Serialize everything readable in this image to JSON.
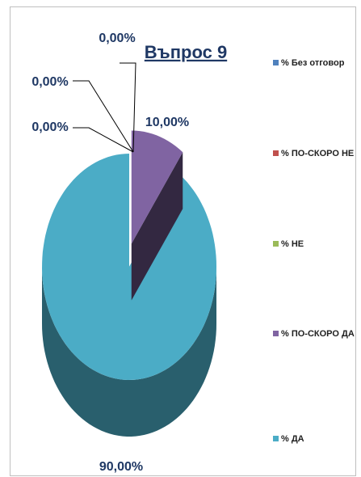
{
  "chart_data": {
    "type": "pie3d",
    "title": "Въпрос 9",
    "categories": [
      "% Без отговор",
      "% ПО-СКОРО НЕ",
      "% НЕ",
      "% ПО-СКОРО ДА",
      "% ДА"
    ],
    "values": [
      0,
      0,
      0,
      10,
      90
    ],
    "value_labels": [
      "0,00%",
      "0,00%",
      "0,00%",
      "10,00%",
      "90,00%"
    ],
    "colors": [
      "#4f81bd",
      "#c0504d",
      "#9bbb59",
      "#8064a2",
      "#4bacc6"
    ],
    "legend": "right"
  }
}
